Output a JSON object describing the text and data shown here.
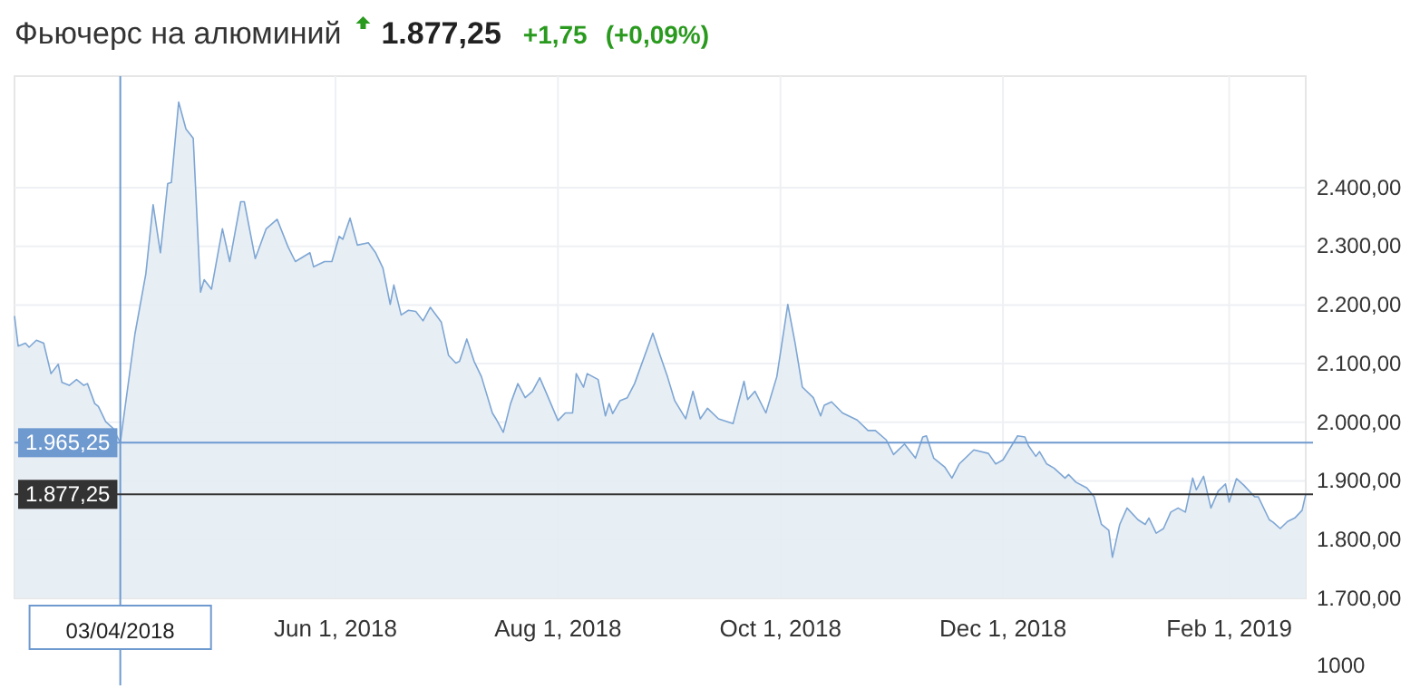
{
  "chart_data": {
    "type": "area",
    "title": "Фьючерс на алюминий",
    "annotations": [
      "1.877,25",
      "+1,75",
      "(+0,09%)",
      "1000"
    ],
    "x": [
      "2018-03-05",
      "2018-03-06",
      "2018-03-08",
      "2018-03-09",
      "2018-03-11",
      "2018-03-13",
      "2018-03-15",
      "2018-03-17",
      "2018-03-18",
      "2018-03-20",
      "2018-03-22",
      "2018-03-24",
      "2018-03-25",
      "2018-03-27",
      "2018-03-28",
      "2018-03-30",
      "2018-04-01",
      "2018-04-03",
      "2018-04-07",
      "2018-04-10",
      "2018-04-12",
      "2018-04-14",
      "2018-04-16",
      "2018-04-17",
      "2018-04-19",
      "2018-04-21",
      "2018-04-23",
      "2018-04-25",
      "2018-04-26",
      "2018-04-28",
      "2018-05-01",
      "2018-05-03",
      "2018-05-06",
      "2018-05-07",
      "2018-05-10",
      "2018-05-13",
      "2018-05-16",
      "2018-05-19",
      "2018-05-21",
      "2018-05-25",
      "2018-05-26",
      "2018-05-29",
      "2018-05-31",
      "2018-06-02",
      "2018-06-03",
      "2018-06-05",
      "2018-06-07",
      "2018-06-10",
      "2018-06-12",
      "2018-06-14",
      "2018-06-16",
      "2018-06-17",
      "2018-06-19",
      "2018-06-21",
      "2018-06-23",
      "2018-06-25",
      "2018-06-27",
      "2018-06-30",
      "2018-07-02",
      "2018-07-04",
      "2018-07-05",
      "2018-07-07",
      "2018-07-09",
      "2018-07-11",
      "2018-07-14",
      "2018-07-15",
      "2018-07-17",
      "2018-07-19",
      "2018-07-21",
      "2018-07-23",
      "2018-07-25",
      "2018-07-27",
      "2018-07-29",
      "2018-08-01",
      "2018-08-03",
      "2018-08-05",
      "2018-08-06",
      "2018-08-08",
      "2018-08-09",
      "2018-08-12",
      "2018-08-14",
      "2018-08-15",
      "2018-08-16",
      "2018-08-18",
      "2018-08-20",
      "2018-08-22",
      "2018-08-27",
      "2018-08-29",
      "2018-08-31",
      "2018-09-02",
      "2018-09-05",
      "2018-09-07",
      "2018-09-09",
      "2018-09-11",
      "2018-09-14",
      "2018-09-18",
      "2018-09-21",
      "2018-09-22",
      "2018-09-24",
      "2018-09-27",
      "2018-09-30",
      "2018-10-03",
      "2018-10-05",
      "2018-10-07",
      "2018-10-10",
      "2018-10-12",
      "2018-10-13",
      "2018-10-15",
      "2018-10-18",
      "2018-10-22",
      "2018-10-25",
      "2018-10-27",
      "2018-10-30",
      "2018-11-01",
      "2018-11-04",
      "2018-11-07",
      "2018-11-09",
      "2018-11-10",
      "2018-11-12",
      "2018-11-15",
      "2018-11-17",
      "2018-11-19",
      "2018-11-23",
      "2018-11-27",
      "2018-11-29",
      "2018-12-01",
      "2018-12-05",
      "2018-12-07",
      "2018-12-08",
      "2018-12-10",
      "2018-12-11",
      "2018-12-13",
      "2018-12-15",
      "2018-12-18",
      "2018-12-19",
      "2018-12-21",
      "2018-12-24",
      "2018-12-26",
      "2018-12-28",
      "2018-12-30",
      "2018-12-31",
      "2019-01-02",
      "2019-01-04",
      "2019-01-07",
      "2019-01-09",
      "2019-01-10",
      "2019-01-12",
      "2019-01-14",
      "2019-01-16",
      "2019-01-18",
      "2019-01-20",
      "2019-01-22",
      "2019-01-23",
      "2019-01-25",
      "2019-01-27",
      "2019-01-29",
      "2019-01-31",
      "2019-02-01",
      "2019-02-03",
      "2019-02-05",
      "2019-02-08",
      "2019-02-09",
      "2019-02-12",
      "2019-02-13",
      "2019-02-15",
      "2019-02-17",
      "2019-02-19",
      "2019-02-21",
      "2019-02-22"
    ],
    "series": [
      {
        "color": "#7ea6d4",
        "values": [
          2181,
          2130,
          2135,
          2128,
          2140,
          2135,
          2083,
          2099,
          2068,
          2063,
          2073,
          2063,
          2066,
          2032,
          2027,
          2001,
          1990,
          1965.25,
          2150,
          2253,
          2371,
          2289,
          2407,
          2409,
          2546,
          2500,
          2484,
          2222,
          2243,
          2227,
          2330,
          2274,
          2376,
          2376,
          2279,
          2330,
          2346,
          2299,
          2274,
          2289,
          2265,
          2274,
          2274,
          2317,
          2312,
          2348,
          2302,
          2306,
          2289,
          2263,
          2201,
          2234,
          2183,
          2191,
          2189,
          2173,
          2196,
          2171,
          2114,
          2101,
          2104,
          2142,
          2104,
          2078,
          2016,
          2006,
          1983,
          2032,
          2066,
          2042,
          2053,
          2076,
          2047,
          2003,
          2016,
          2016,
          2083,
          2060,
          2083,
          2073,
          2011,
          2032,
          2015,
          2037,
          2042,
          2066,
          2152,
          2114,
          2078,
          2037,
          2006,
          2053,
          2006,
          2024,
          2006,
          1998,
          2070,
          2039,
          2053,
          2016,
          2078,
          2201,
          2135,
          2060,
          2042,
          2011,
          2029,
          2035,
          2016,
          2004,
          1986,
          1986,
          1970,
          1945,
          1963,
          1939,
          1975,
          1977,
          1939,
          1924,
          1905,
          1929,
          1953,
          1947,
          1929,
          1936,
          1977,
          1975,
          1960,
          1942,
          1950,
          1929,
          1922,
          1905,
          1911,
          1898,
          1888,
          1873,
          1826,
          1816,
          1770,
          1826,
          1854,
          1834,
          1826,
          1837,
          1811,
          1819,
          1847,
          1854,
          1847,
          1905,
          1885,
          1908,
          1854,
          1883,
          1895,
          1864,
          1904,
          1893,
          1873,
          1873,
          1834,
          1830,
          1819,
          1831,
          1837,
          1850,
          1877.25
        ]
      }
    ],
    "xlim": [
      "2018-03-05",
      "2019-02-22"
    ],
    "xticks": [
      {
        "value": "2018-06-01",
        "label": "Jun 1, 2018"
      },
      {
        "value": "2018-08-01",
        "label": "Aug 1, 2018"
      },
      {
        "value": "2018-10-01",
        "label": "Oct 1, 2018"
      },
      {
        "value": "2018-12-01",
        "label": "Dec 1, 2018"
      },
      {
        "value": "2019-02-01",
        "label": "Feb 1, 2019"
      }
    ],
    "ylim": [
      1700,
      2590
    ],
    "yticks": [
      {
        "value": 1700,
        "label": "1.700,00"
      },
      {
        "value": 1800,
        "label": "1.800,00"
      },
      {
        "value": 1900,
        "label": "1.900,00"
      },
      {
        "value": 2000,
        "label": "2.000,00"
      },
      {
        "value": 2100,
        "label": "2.100,00"
      },
      {
        "value": 2200,
        "label": "2.200,00"
      },
      {
        "value": 2300,
        "label": "2.300,00"
      },
      {
        "value": 2400,
        "label": "2.400,00"
      }
    ],
    "grid": true,
    "ref_lines": [
      {
        "axis": "x",
        "value": "2018-04-03",
        "label": "03/04/2018",
        "color": "#6f9ad0"
      },
      {
        "axis": "y",
        "value": 1965.25,
        "label": "1.965,25",
        "color": "#6f9ad0"
      },
      {
        "axis": "y",
        "value": 1877.25,
        "label": "1.877,25",
        "color": "#333333"
      }
    ]
  }
}
